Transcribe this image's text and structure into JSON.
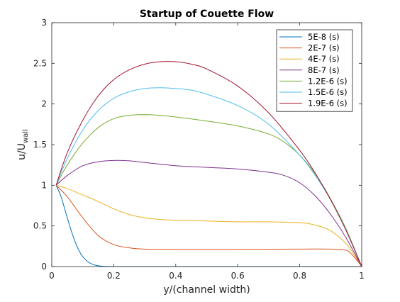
{
  "chart_data": {
    "type": "line",
    "title": "Startup of Couette Flow",
    "xlabel": "y/(channel width)",
    "ylabel_main": "u/U",
    "ylabel_sub": "wall",
    "xlim": [
      0,
      1
    ],
    "ylim": [
      0,
      3
    ],
    "xticks": [
      "0",
      "0.2",
      "0.4",
      "0.6",
      "0.8",
      "1"
    ],
    "yticks": [
      "0",
      "0.5",
      "1",
      "1.5",
      "2",
      "2.5",
      "3"
    ],
    "legend_position": "top-right",
    "grid": false,
    "series": [
      {
        "name": "5E-8 (s)",
        "color": "#0072BD",
        "x": [
          0.014,
          0.03,
          0.05,
          0.07,
          0.09,
          0.11,
          0.13,
          0.15,
          0.17,
          0.2,
          0.3,
          0.5,
          0.7,
          0.9,
          1.0
        ],
        "y": [
          1.0,
          0.86,
          0.6,
          0.36,
          0.18,
          0.08,
          0.03,
          0.01,
          0.003,
          0.0,
          0.0,
          0.0,
          0.0,
          0.0,
          0.0
        ]
      },
      {
        "name": "2E-7 (s)",
        "color": "#D95319",
        "x": [
          0.014,
          0.05,
          0.1,
          0.15,
          0.2,
          0.25,
          0.3,
          0.4,
          0.6,
          0.8,
          0.9,
          0.95,
          0.975,
          1.0
        ],
        "y": [
          1.0,
          0.86,
          0.6,
          0.38,
          0.27,
          0.23,
          0.215,
          0.212,
          0.212,
          0.215,
          0.215,
          0.2,
          0.12,
          0.0
        ]
      },
      {
        "name": "4E-7 (s)",
        "color": "#EDB120",
        "x": [
          0.014,
          0.05,
          0.1,
          0.15,
          0.2,
          0.25,
          0.3,
          0.35,
          0.4,
          0.5,
          0.6,
          0.7,
          0.8,
          0.85,
          0.9,
          0.95,
          0.975,
          1.0
        ],
        "y": [
          1.0,
          0.96,
          0.88,
          0.8,
          0.71,
          0.64,
          0.6,
          0.58,
          0.57,
          0.56,
          0.55,
          0.55,
          0.54,
          0.51,
          0.44,
          0.28,
          0.15,
          0.0
        ]
      },
      {
        "name": "8E-7 (s)",
        "color": "#7E2F8E",
        "x": [
          0.014,
          0.05,
          0.1,
          0.15,
          0.2,
          0.25,
          0.3,
          0.4,
          0.5,
          0.6,
          0.7,
          0.75,
          0.8,
          0.85,
          0.9,
          0.95,
          1.0
        ],
        "y": [
          1.0,
          1.12,
          1.24,
          1.29,
          1.305,
          1.3,
          1.28,
          1.24,
          1.22,
          1.2,
          1.16,
          1.12,
          1.03,
          0.87,
          0.64,
          0.35,
          0.0
        ]
      },
      {
        "name": "1.2E-6 (s)",
        "color": "#77AC30",
        "x": [
          0.014,
          0.05,
          0.1,
          0.15,
          0.2,
          0.25,
          0.3,
          0.35,
          0.4,
          0.5,
          0.6,
          0.7,
          0.75,
          0.8,
          0.85,
          0.9,
          0.95,
          1.0
        ],
        "y": [
          1.0,
          1.25,
          1.52,
          1.71,
          1.82,
          1.86,
          1.87,
          1.86,
          1.84,
          1.79,
          1.73,
          1.63,
          1.53,
          1.37,
          1.14,
          0.83,
          0.46,
          0.0
        ]
      },
      {
        "name": "1.5E-6 (s)",
        "color": "#4DBEEE",
        "x": [
          0.014,
          0.05,
          0.1,
          0.15,
          0.2,
          0.25,
          0.3,
          0.35,
          0.4,
          0.45,
          0.5,
          0.6,
          0.7,
          0.8,
          0.85,
          0.9,
          0.95,
          1.0
        ],
        "y": [
          1.0,
          1.33,
          1.68,
          1.92,
          2.07,
          2.15,
          2.19,
          2.2,
          2.19,
          2.17,
          2.12,
          1.98,
          1.75,
          1.37,
          1.12,
          0.82,
          0.45,
          0.0
        ]
      },
      {
        "name": "1.9E-6 (s)",
        "color": "#A2142F",
        "x": [
          0.014,
          0.05,
          0.1,
          0.15,
          0.2,
          0.25,
          0.3,
          0.35,
          0.4,
          0.45,
          0.5,
          0.6,
          0.7,
          0.8,
          0.85,
          0.9,
          0.95,
          1.0
        ],
        "y": [
          1.0,
          1.4,
          1.8,
          2.1,
          2.3,
          2.42,
          2.49,
          2.52,
          2.52,
          2.49,
          2.43,
          2.22,
          1.89,
          1.43,
          1.15,
          0.82,
          0.44,
          0.0
        ]
      }
    ]
  }
}
